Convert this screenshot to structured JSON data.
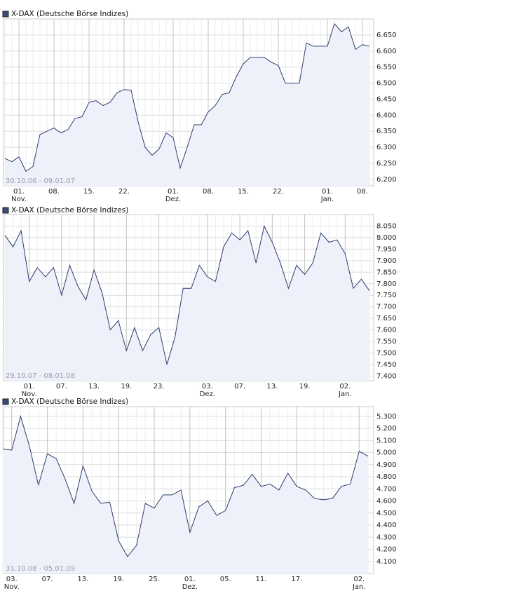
{
  "chart_data": [
    {
      "type": "line",
      "title": "X-DAX (Deutsche Börse Indizes)",
      "date_range": "30.10.06 - 09.01.07",
      "categories": [
        null,
        null,
        "01.",
        null,
        null,
        null,
        null,
        "08.",
        null,
        null,
        null,
        null,
        "15.",
        null,
        null,
        null,
        null,
        "22.",
        null,
        null,
        null,
        null,
        null,
        null,
        "01.",
        null,
        null,
        null,
        null,
        "08.",
        null,
        null,
        null,
        null,
        "15.",
        null,
        null,
        null,
        null,
        "22.",
        null,
        null,
        null,
        null,
        null,
        null,
        "01.",
        null,
        null,
        null,
        null,
        "08.",
        null
      ],
      "month_labels": [
        null,
        null,
        "Nov.",
        null,
        null,
        null,
        null,
        null,
        null,
        null,
        null,
        null,
        null,
        null,
        null,
        null,
        null,
        null,
        null,
        null,
        null,
        null,
        null,
        null,
        "Dez.",
        null,
        null,
        null,
        null,
        null,
        null,
        null,
        null,
        null,
        null,
        null,
        null,
        null,
        null,
        null,
        null,
        null,
        null,
        null,
        null,
        null,
        "Jan.",
        null,
        null,
        null,
        null,
        null,
        null
      ],
      "values": [
        6265,
        6255,
        6270,
        6225,
        6240,
        6340,
        6350,
        6360,
        6345,
        6355,
        6390,
        6395,
        6440,
        6445,
        6430,
        6440,
        6470,
        6480,
        6478,
        6380,
        6300,
        6275,
        6295,
        6345,
        6330,
        6235,
        6300,
        6370,
        6370,
        6410,
        6430,
        6465,
        6470,
        6520,
        6560,
        6580,
        6580,
        6580,
        6565,
        6555,
        6500,
        6500,
        6500,
        6625,
        6615,
        6615,
        6615,
        6685,
        6660,
        6675,
        6605,
        6620,
        6615
      ],
      "color": "#2e3c6e",
      "fill": "#eef1fa",
      "ylim": [
        6180,
        6700
      ],
      "yticks": [
        {
          "value": 6200,
          "label": "6.200"
        },
        {
          "value": 6250,
          "label": "6.250"
        },
        {
          "value": 6300,
          "label": "6.300"
        },
        {
          "value": 6350,
          "label": "6.350"
        },
        {
          "value": 6400,
          "label": "6.400"
        },
        {
          "value": 6450,
          "label": "6.450"
        },
        {
          "value": 6500,
          "label": "6.500"
        },
        {
          "value": 6550,
          "label": "6.550"
        },
        {
          "value": 6600,
          "label": "6.600"
        },
        {
          "value": 6650,
          "label": "6.650"
        }
      ],
      "grid": true
    },
    {
      "type": "line",
      "title": "X-DAX (Deutsche Börse Indizes)",
      "date_range": "29.10.07 - 08.01.08",
      "categories": [
        null,
        null,
        null,
        "01.",
        null,
        null,
        null,
        "07.",
        null,
        null,
        null,
        "13.",
        null,
        null,
        null,
        "19.",
        null,
        null,
        null,
        "23.",
        null,
        null,
        null,
        null,
        null,
        "03.",
        null,
        null,
        null,
        "07.",
        null,
        null,
        null,
        "13.",
        null,
        null,
        null,
        "19.",
        null,
        null,
        null,
        null,
        "02.",
        null,
        null,
        null
      ],
      "month_labels": [
        null,
        null,
        null,
        "Nov.",
        null,
        null,
        null,
        null,
        null,
        null,
        null,
        null,
        null,
        null,
        null,
        null,
        null,
        null,
        null,
        null,
        null,
        null,
        null,
        null,
        null,
        "Dez.",
        null,
        null,
        null,
        null,
        null,
        null,
        null,
        null,
        null,
        null,
        null,
        null,
        null,
        null,
        null,
        null,
        "Jan.",
        null,
        null,
        null
      ],
      "values": [
        8010,
        7960,
        8030,
        7810,
        7870,
        7830,
        7870,
        7750,
        7880,
        7790,
        7730,
        7860,
        7760,
        7600,
        7640,
        7510,
        7610,
        7510,
        7580,
        7610,
        7450,
        7570,
        7780,
        7780,
        7880,
        7830,
        7810,
        7960,
        8020,
        7990,
        8030,
        7890,
        8050,
        7980,
        7890,
        7780,
        7880,
        7840,
        7890,
        8020,
        7980,
        7990,
        7930,
        7780,
        7820,
        7770
      ],
      "color": "#2e3c6e",
      "fill": "#eef1fa",
      "ylim": [
        7380,
        8100
      ],
      "yticks": [
        {
          "value": 7400,
          "label": "7.400"
        },
        {
          "value": 7450,
          "label": "7.450"
        },
        {
          "value": 7500,
          "label": "7.500"
        },
        {
          "value": 7550,
          "label": "7.550"
        },
        {
          "value": 7600,
          "label": "7.600"
        },
        {
          "value": 7650,
          "label": "7.650"
        },
        {
          "value": 7700,
          "label": "7.700"
        },
        {
          "value": 7750,
          "label": "7.750"
        },
        {
          "value": 7800,
          "label": "7.800"
        },
        {
          "value": 7850,
          "label": "7.850"
        },
        {
          "value": 7900,
          "label": "7.900"
        },
        {
          "value": 7950,
          "label": "7.950"
        },
        {
          "value": 8000,
          "label": "8.000"
        },
        {
          "value": 8050,
          "label": "8.050"
        }
      ],
      "grid": true
    },
    {
      "type": "line",
      "title": "X-DAX (Deutsche Börse Indizes)",
      "date_range": "31.10.08 - 05.01.09",
      "categories": [
        null,
        "03.",
        null,
        null,
        null,
        "07.",
        null,
        null,
        null,
        "13.",
        null,
        null,
        null,
        "19.",
        null,
        null,
        null,
        "25.",
        null,
        null,
        null,
        "01.",
        null,
        null,
        null,
        "05.",
        null,
        null,
        null,
        "11.",
        null,
        null,
        null,
        "17.",
        null,
        null,
        null,
        null,
        null,
        null,
        "02.",
        null
      ],
      "month_labels": [
        null,
        "Nov.",
        null,
        null,
        null,
        null,
        null,
        null,
        null,
        null,
        null,
        null,
        null,
        null,
        null,
        null,
        null,
        null,
        null,
        null,
        null,
        "Dez.",
        null,
        null,
        null,
        null,
        null,
        null,
        null,
        null,
        null,
        null,
        null,
        null,
        null,
        null,
        null,
        null,
        null,
        null,
        "Jan.",
        null
      ],
      "values": [
        5030,
        5020,
        5300,
        5050,
        4730,
        4990,
        4950,
        4780,
        4580,
        4890,
        4680,
        4580,
        4590,
        4270,
        4140,
        4230,
        4580,
        4540,
        4650,
        4650,
        4690,
        4340,
        4550,
        4600,
        4480,
        4520,
        4710,
        4730,
        4820,
        4720,
        4740,
        4690,
        4830,
        4720,
        4690,
        4620,
        4610,
        4620,
        4720,
        4740,
        5010,
        4970
      ],
      "color": "#2e3c6e",
      "fill": "#eef1fa",
      "ylim": [
        4000,
        5380
      ],
      "yticks": [
        {
          "value": 4100,
          "label": "4.100"
        },
        {
          "value": 4200,
          "label": "4.200"
        },
        {
          "value": 4300,
          "label": "4.300"
        },
        {
          "value": 4400,
          "label": "4.400"
        },
        {
          "value": 4500,
          "label": "4.500"
        },
        {
          "value": 4600,
          "label": "4.600"
        },
        {
          "value": 4700,
          "label": "4.700"
        },
        {
          "value": 4800,
          "label": "4.800"
        },
        {
          "value": 4900,
          "label": "4.900"
        },
        {
          "value": 5000,
          "label": "5.000"
        },
        {
          "value": 5100,
          "label": "5.100"
        },
        {
          "value": 5200,
          "label": "5.200"
        },
        {
          "value": 5300,
          "label": "5.300"
        }
      ],
      "grid": true
    }
  ]
}
